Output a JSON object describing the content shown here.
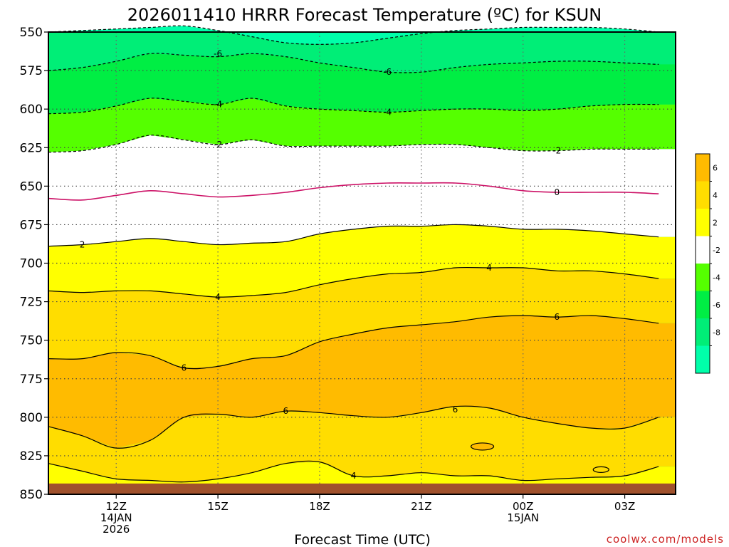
{
  "chart_data": {
    "type": "area",
    "title": "2026011410 HRRR Forecast Temperature (ºC) for KSUN",
    "xlabel": "Forecast Time (UTC)",
    "ylabel": "",
    "credit": "coolwx.com/models",
    "y_scale": "pressure (reversed)",
    "ylim": [
      550,
      850
    ],
    "xlim": [
      "2026-01-14T10Z",
      "2026-01-15T04Z"
    ],
    "y_ticks": [
      "550",
      "575",
      "600",
      "625",
      "650",
      "675",
      "700",
      "725",
      "750",
      "775",
      "800",
      "825",
      "850"
    ],
    "x_ticks": [
      {
        "time": "2026-01-14T12Z",
        "lines": [
          "12Z",
          "14JAN",
          "2026"
        ]
      },
      {
        "time": "2026-01-14T15Z",
        "lines": [
          "15Z"
        ]
      },
      {
        "time": "2026-01-14T18Z",
        "lines": [
          "18Z"
        ]
      },
      {
        "time": "2026-01-14T21Z",
        "lines": [
          "21Z"
        ]
      },
      {
        "time": "2026-01-15T00Z",
        "lines": [
          "00Z",
          "15JAN"
        ]
      },
      {
        "time": "2026-01-15T03Z",
        "lines": [
          "03Z"
        ]
      }
    ],
    "grid": true,
    "x_hours": [
      10,
      11,
      12,
      13,
      14,
      15,
      16,
      17,
      18,
      19,
      20,
      21,
      22,
      23,
      24,
      25,
      26,
      27,
      28
    ],
    "contours": [
      {
        "level": -8,
        "style": "dashed",
        "pressure": [
          550,
          549,
          548,
          547,
          546,
          549,
          553,
          557,
          558,
          557,
          554,
          551,
          549,
          548,
          547,
          547,
          547,
          548,
          550
        ]
      },
      {
        "level": -6,
        "style": "dashed",
        "pressure": [
          575,
          573,
          569,
          564,
          565,
          566,
          564,
          566,
          570,
          573,
          576,
          576,
          573,
          571,
          570,
          569,
          569,
          570,
          571
        ]
      },
      {
        "level": -4,
        "style": "dashed",
        "pressure": [
          603,
          602,
          598,
          593,
          595,
          597,
          593,
          598,
          600,
          601,
          602,
          601,
          600,
          600,
          601,
          600,
          598,
          597,
          597
        ]
      },
      {
        "level": -2,
        "style": "dashed",
        "pressure": [
          628,
          627,
          623,
          617,
          620,
          623,
          620,
          624,
          624,
          624,
          624,
          623,
          623,
          625,
          627,
          627,
          626,
          626,
          626
        ]
      },
      {
        "level": 0,
        "style": "solid",
        "pressure": [
          658,
          659,
          656,
          653,
          655,
          657,
          656,
          654,
          651,
          649,
          648,
          648,
          648,
          650,
          653,
          654,
          654,
          654,
          655
        ]
      },
      {
        "level": 2,
        "style": "solid",
        "pressure": [
          689,
          688,
          686,
          684,
          686,
          688,
          687,
          686,
          681,
          678,
          676,
          676,
          675,
          676,
          678,
          678,
          679,
          681,
          683
        ]
      },
      {
        "level": 4,
        "style": "solid",
        "pressure": [
          718,
          719,
          718,
          718,
          720,
          722,
          721,
          719,
          714,
          710,
          707,
          706,
          703,
          703,
          703,
          705,
          705,
          707,
          710
        ]
      },
      {
        "level": 6,
        "style": "solid",
        "pressure": [
          762,
          762,
          758,
          760,
          768,
          767,
          762,
          760,
          751,
          746,
          742,
          740,
          738,
          735,
          734,
          735,
          734,
          736,
          739
        ]
      },
      {
        "level": 6,
        "style": "solid",
        "pressure": [
          806,
          812,
          820,
          815,
          800,
          798,
          800,
          796,
          797,
          799,
          800,
          797,
          793,
          794,
          800,
          804,
          807,
          807,
          800
        ]
      },
      {
        "level": 4,
        "style": "solid",
        "pressure": [
          830,
          835,
          840,
          841,
          842,
          840,
          836,
          830,
          829,
          838,
          838,
          836,
          838,
          838,
          841,
          840,
          839,
          838,
          832
        ]
      }
    ],
    "contour_labels": [
      {
        "text": "-6",
        "x": 15.0,
        "pressure": 564
      },
      {
        "text": "-6",
        "x": 20.0,
        "pressure": 576
      },
      {
        "text": "-4",
        "x": 15.0,
        "pressure": 597
      },
      {
        "text": "-4",
        "x": 20.0,
        "pressure": 602
      },
      {
        "text": "-2",
        "x": 15.0,
        "pressure": 623
      },
      {
        "text": "-2",
        "x": 25.0,
        "pressure": 627
      },
      {
        "text": "0",
        "x": 25.0,
        "pressure": 654
      },
      {
        "text": "2",
        "x": 11.0,
        "pressure": 688
      },
      {
        "text": "4",
        "x": 15.0,
        "pressure": 722
      },
      {
        "text": "4",
        "x": 23.0,
        "pressure": 703
      },
      {
        "text": "6",
        "x": 14.0,
        "pressure": 768
      },
      {
        "text": "6",
        "x": 25.0,
        "pressure": 735
      },
      {
        "text": "6",
        "x": 17.0,
        "pressure": 796
      },
      {
        "text": "6",
        "x": 22.0,
        "pressure": 795
      },
      {
        "text": "4",
        "x": 19.0,
        "pressure": 838
      }
    ],
    "small_contours": [
      {
        "level": 6,
        "x": 22.8,
        "pressure": 819
      },
      {
        "level": 4,
        "x": 26.3,
        "pressure": 834
      }
    ],
    "ground_pressure": 843,
    "colorbar": {
      "ticks": [
        "6",
        "4",
        "2",
        "-2",
        "-4",
        "-6",
        "-8"
      ],
      "bins": [
        {
          "range": "6 to 8",
          "color": "#ffbb00"
        },
        {
          "range": "4 to 6",
          "color": "#ffdd00"
        },
        {
          "range": "2 to 4",
          "color": "#ffff00"
        },
        {
          "range": "-2 to 2",
          "color": "#ffffff"
        },
        {
          "range": "-4 to -2",
          "color": "#55ff00"
        },
        {
          "range": "-6 to -4",
          "color": "#00ee44"
        },
        {
          "range": "-8 to -6",
          "color": "#00ee77"
        },
        {
          "range": "below -8",
          "color": "#00ffaa"
        }
      ]
    },
    "colors": {
      "gt6": "#ffbb00",
      "4to6": "#ffdd00",
      "2to4": "#ffff00",
      "m2to2": "#ffffff",
      "m4tom2": "#55ff00",
      "m6tom4": "#00ee44",
      "m8tom6": "#00ee77",
      "ltm8": "#00ffaa",
      "zero_line": "#cc1166",
      "ground": "#a0522d"
    }
  }
}
